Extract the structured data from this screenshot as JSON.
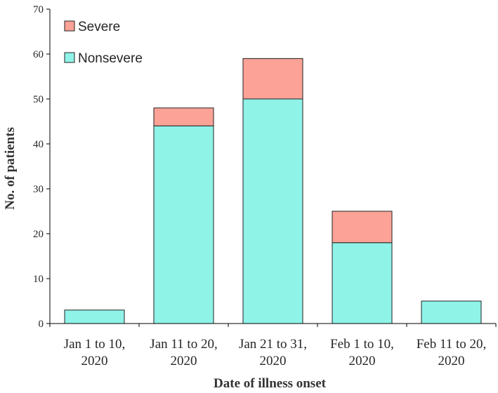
{
  "chart_data": {
    "type": "bar",
    "stacked": true,
    "categories": [
      [
        "Jan 1 to 10,",
        "2020"
      ],
      [
        "Jan 11 to 20,",
        "2020"
      ],
      [
        "Jan 21 to 31,",
        "2020"
      ],
      [
        "Feb 1 to 10,",
        "2020"
      ],
      [
        "Feb 11 to 20,",
        "2020"
      ]
    ],
    "series": [
      {
        "name": "Nonsevere",
        "values": [
          3,
          44,
          50,
          18,
          5
        ],
        "color": "#8ff3e8"
      },
      {
        "name": "Severe",
        "values": [
          0,
          4,
          9,
          7,
          0
        ],
        "color": "#fca296"
      }
    ],
    "legend_order": [
      "Severe",
      "Nonsevere"
    ],
    "xlabel": "Date of illness onset",
    "ylabel": "No. of patients",
    "ylim": [
      0,
      70
    ],
    "yticks": [
      0,
      10,
      20,
      30,
      40,
      50,
      60,
      70
    ],
    "grid": false,
    "legend_position": "top-left"
  }
}
